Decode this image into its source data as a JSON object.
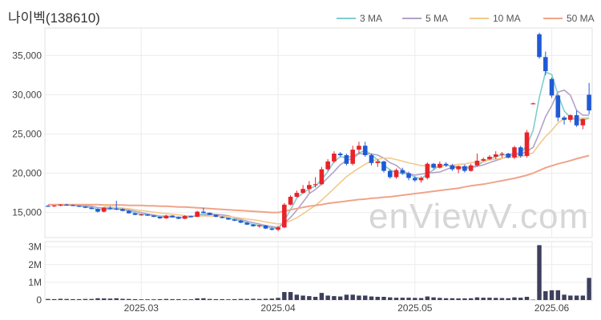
{
  "title": "나이벡(138610)",
  "watermark": "enViewV.com",
  "chart_data": {
    "type": "candlestick",
    "title": "나이벡(138610)",
    "price_axis": {
      "ticks": [
        15000,
        20000,
        25000,
        30000,
        35000
      ],
      "tick_labels": [
        "15,000",
        "20,000",
        "25,000",
        "30,000",
        "35,000"
      ],
      "range": [
        11800,
        38500
      ]
    },
    "volume_axis": {
      "ticks": [
        0,
        1000000,
        2000000,
        3000000
      ],
      "tick_labels": [
        "0",
        "1M",
        "2M",
        "3M"
      ],
      "range": [
        0,
        3300000
      ]
    },
    "x_axis": {
      "tick_labels": [
        "2025.03",
        "2025.04",
        "2025.05",
        "2025.06"
      ],
      "tick_index": [
        15,
        37,
        59,
        81
      ]
    },
    "grid": true,
    "legend_position": "top-right",
    "legend": [
      {
        "name": "3 MA",
        "color": "#7fcdcd"
      },
      {
        "name": "5 MA",
        "color": "#b3a2c7"
      },
      {
        "name": "10 MA",
        "color": "#f2c98a"
      },
      {
        "name": "50 MA",
        "color": "#f0a48a"
      }
    ],
    "colors": {
      "up": "#e8232a",
      "down": "#1f5ad6",
      "volume": "#3d3f5c"
    },
    "candles": [
      [
        15850,
        15950,
        15750,
        15800,
        60000
      ],
      [
        15800,
        15900,
        15700,
        15900,
        50000
      ],
      [
        15900,
        16050,
        15800,
        16000,
        70000
      ],
      [
        16000,
        16100,
        15900,
        15950,
        60000
      ],
      [
        15950,
        16000,
        15800,
        15850,
        50000
      ],
      [
        15850,
        15900,
        15700,
        15750,
        50000
      ],
      [
        15750,
        15800,
        15550,
        15600,
        60000
      ],
      [
        15600,
        15700,
        15400,
        15450,
        60000
      ],
      [
        15450,
        15550,
        15000,
        15100,
        100000
      ],
      [
        15100,
        15700,
        15000,
        15600,
        90000
      ],
      [
        15600,
        15800,
        15400,
        15500,
        80000
      ],
      [
        15500,
        16500,
        15300,
        15450,
        100000
      ],
      [
        15450,
        15550,
        15150,
        15200,
        70000
      ],
      [
        15200,
        15300,
        14850,
        14900,
        60000
      ],
      [
        14900,
        15000,
        14650,
        14700,
        50000
      ],
      [
        14700,
        14850,
        14600,
        14750,
        40000
      ],
      [
        14750,
        14800,
        14550,
        14600,
        40000
      ],
      [
        14600,
        14650,
        14400,
        14450,
        40000
      ],
      [
        14450,
        14500,
        14200,
        14250,
        50000
      ],
      [
        14250,
        14700,
        14200,
        14600,
        60000
      ],
      [
        14600,
        14650,
        14350,
        14400,
        50000
      ],
      [
        14400,
        14500,
        14150,
        14200,
        50000
      ],
      [
        14200,
        14650,
        14150,
        14550,
        40000
      ],
      [
        14550,
        14600,
        14400,
        14450,
        40000
      ],
      [
        14450,
        15200,
        14400,
        15100,
        90000
      ],
      [
        15100,
        15600,
        14900,
        14950,
        100000
      ],
      [
        14950,
        15000,
        14650,
        14700,
        60000
      ],
      [
        14700,
        14750,
        14400,
        14450,
        50000
      ],
      [
        14450,
        14550,
        14250,
        14300,
        50000
      ],
      [
        14300,
        14350,
        14050,
        14100,
        40000
      ],
      [
        14100,
        14200,
        13900,
        13950,
        50000
      ],
      [
        13950,
        14050,
        13650,
        13700,
        60000
      ],
      [
        13700,
        13800,
        13400,
        13450,
        60000
      ],
      [
        13450,
        13550,
        13200,
        13250,
        70000
      ],
      [
        13250,
        13450,
        13050,
        13350,
        60000
      ],
      [
        13350,
        13400,
        12900,
        12950,
        70000
      ],
      [
        12950,
        13100,
        12700,
        12800,
        80000
      ],
      [
        12800,
        13300,
        12600,
        13100,
        120000
      ],
      [
        13100,
        16200,
        13000,
        16000,
        450000
      ],
      [
        16000,
        17200,
        15900,
        17000,
        450000
      ],
      [
        17000,
        17800,
        16900,
        17500,
        300000
      ],
      [
        17500,
        18500,
        17400,
        18000,
        250000
      ],
      [
        18000,
        19000,
        17500,
        18500,
        220000
      ],
      [
        18500,
        19500,
        18200,
        18600,
        180000
      ],
      [
        18600,
        20800,
        18500,
        20500,
        400000
      ],
      [
        20500,
        21800,
        20300,
        21500,
        250000
      ],
      [
        21500,
        22800,
        21300,
        22500,
        220000
      ],
      [
        22500,
        22700,
        22100,
        22300,
        200000
      ],
      [
        22300,
        22500,
        21000,
        21200,
        300000
      ],
      [
        21200,
        23500,
        21000,
        23000,
        300000
      ],
      [
        23000,
        24000,
        22500,
        23500,
        250000
      ],
      [
        23500,
        24000,
        22100,
        22300,
        250000
      ],
      [
        22300,
        22500,
        21000,
        21300,
        200000
      ],
      [
        21300,
        21800,
        20800,
        21500,
        180000
      ],
      [
        21500,
        21600,
        20100,
        20300,
        180000
      ],
      [
        20300,
        20500,
        19300,
        19500,
        150000
      ],
      [
        19500,
        20600,
        19300,
        20400,
        130000
      ],
      [
        20400,
        20700,
        19800,
        20000,
        130000
      ],
      [
        20000,
        20200,
        19100,
        19400,
        130000
      ],
      [
        19400,
        19600,
        18900,
        19100,
        120000
      ],
      [
        19100,
        19600,
        18800,
        19400,
        110000
      ],
      [
        19400,
        21400,
        19200,
        21200,
        200000
      ],
      [
        21200,
        21300,
        20500,
        20700,
        150000
      ],
      [
        20700,
        21500,
        20600,
        21200,
        120000
      ],
      [
        21200,
        21400,
        20800,
        21000,
        100000
      ],
      [
        21000,
        21200,
        20300,
        20500,
        100000
      ],
      [
        20500,
        21000,
        20000,
        20900,
        90000
      ],
      [
        20900,
        21100,
        20100,
        20300,
        90000
      ],
      [
        20300,
        21200,
        20200,
        21000,
        100000
      ],
      [
        21000,
        22500,
        20900,
        21600,
        150000
      ],
      [
        21600,
        22000,
        21500,
        21800,
        130000
      ],
      [
        21800,
        22300,
        21700,
        22100,
        130000
      ],
      [
        22100,
        22800,
        21800,
        22400,
        120000
      ],
      [
        22400,
        22700,
        22000,
        22500,
        110000
      ],
      [
        22500,
        22600,
        21900,
        22000,
        100000
      ],
      [
        22000,
        23500,
        21800,
        23300,
        150000
      ],
      [
        23300,
        23500,
        22000,
        22200,
        130000
      ],
      [
        22200,
        25500,
        22000,
        25200,
        180000
      ],
      [
        28800,
        29000,
        28800,
        28900,
        20000
      ],
      [
        37700,
        37900,
        34600,
        34800,
        3100000
      ],
      [
        34800,
        35500,
        32500,
        33000,
        500000
      ],
      [
        32000,
        32200,
        29600,
        29900,
        550000
      ],
      [
        29900,
        30000,
        26600,
        27100,
        550000
      ],
      [
        27100,
        27300,
        26200,
        26800,
        300000
      ],
      [
        26800,
        27500,
        26500,
        27400,
        250000
      ],
      [
        27400,
        28000,
        25900,
        26100,
        250000
      ],
      [
        26100,
        27000,
        25600,
        26900,
        250000
      ],
      [
        30000,
        31500,
        27500,
        28000,
        1250000
      ]
    ],
    "ma": {
      "3 MA": [
        null,
        null,
        15883,
        15950,
        15933,
        15850,
        15733,
        15600,
        15383,
        15383,
        15400,
        15517,
        15383,
        15183,
        14933,
        14783,
        14683,
        14600,
        14433,
        14433,
        14417,
        14400,
        14383,
        14400,
        14700,
        14833,
        14917,
        14700,
        14483,
        14283,
        14117,
        13917,
        13700,
        13467,
        13350,
        13183,
        13033,
        12950,
        13967,
        15367,
        16833,
        17500,
        18000,
        18367,
        19200,
        20200,
        21500,
        22100,
        22000,
        22167,
        22567,
        22933,
        22367,
        21700,
        21033,
        20433,
        20067,
        19967,
        19933,
        19500,
        19300,
        19900,
        20433,
        21033,
        20967,
        20900,
        20800,
        20567,
        20733,
        20967,
        21467,
        21833,
        22100,
        22333,
        22300,
        22600,
        22500,
        23567,
        25433,
        29633,
        32900,
        32567,
        30000,
        27933,
        27100,
        26767,
        26800,
        27000
      ],
      "5 MA": [
        null,
        null,
        null,
        null,
        15900,
        15900,
        15870,
        15790,
        15630,
        15560,
        15490,
        15420,
        15370,
        15330,
        15150,
        15000,
        14830,
        14680,
        14550,
        14530,
        14460,
        14380,
        14400,
        14440,
        14580,
        14640,
        14740,
        14750,
        14700,
        14590,
        14310,
        14100,
        13900,
        13700,
        13530,
        13340,
        13210,
        13080,
        13640,
        14370,
        15290,
        16320,
        17400,
        17920,
        18620,
        19420,
        20220,
        21080,
        21600,
        21900,
        22500,
        22460,
        22460,
        22320,
        21920,
        21340,
        21000,
        20340,
        19920,
        19760,
        19880,
        20000,
        20080,
        20160,
        20460,
        20780,
        20700,
        20780,
        20740,
        20860,
        21060,
        21360,
        21600,
        21880,
        22160,
        22360,
        22400,
        22800,
        23300,
        25100,
        27200,
        28620,
        30340,
        30580,
        29940,
        28000,
        27380,
        27400
      ],
      "10 MA": [
        null,
        null,
        null,
        null,
        null,
        null,
        null,
        null,
        null,
        15705,
        15690,
        15640,
        15575,
        15480,
        15350,
        15240,
        15150,
        15045,
        14935,
        14860,
        14780,
        14690,
        14610,
        14560,
        14575,
        14560,
        14545,
        14535,
        14520,
        14475,
        14385,
        14275,
        14165,
        14070,
        13960,
        13790,
        13660,
        13530,
        13670,
        13945,
        14325,
        14825,
        15375,
        15890,
        16575,
        17290,
        18060,
        18825,
        19560,
        20135,
        20650,
        21140,
        21540,
        21770,
        21935,
        21920,
        21735,
        21540,
        21320,
        21170,
        20960,
        20960,
        20900,
        20860,
        20960,
        21020,
        21150,
        21190,
        21350,
        21410,
        21460,
        21700,
        21810,
        21920,
        22010,
        22060,
        22100,
        22340,
        22600,
        23700,
        24680,
        25480,
        26390,
        26950,
        27070,
        27010,
        27010,
        27080
      ],
      "50 MA": [
        16000,
        16000,
        16000,
        16000,
        16000,
        16000,
        16000,
        16000,
        16000,
        15950,
        15950,
        15950,
        15950,
        15900,
        15900,
        15900,
        15850,
        15850,
        15800,
        15800,
        15750,
        15700,
        15700,
        15650,
        15600,
        15550,
        15500,
        15450,
        15400,
        15350,
        15300,
        15250,
        15200,
        15150,
        15100,
        15050,
        15000,
        15000,
        15150,
        15350,
        15500,
        15650,
        15800,
        15900,
        16000,
        16150,
        16250,
        16350,
        16450,
        16550,
        16650,
        16700,
        16800,
        16850,
        16950,
        17000,
        17100,
        17200,
        17300,
        17400,
        17500,
        17600,
        17700,
        17800,
        17900,
        18000,
        18100,
        18250,
        18400,
        18500,
        18600,
        18750,
        18900,
        19050,
        19200,
        19350,
        19550,
        19750,
        20000,
        20350,
        20700,
        20950,
        21200,
        21400,
        21600,
        21850,
        22050,
        22250
      ]
    }
  }
}
